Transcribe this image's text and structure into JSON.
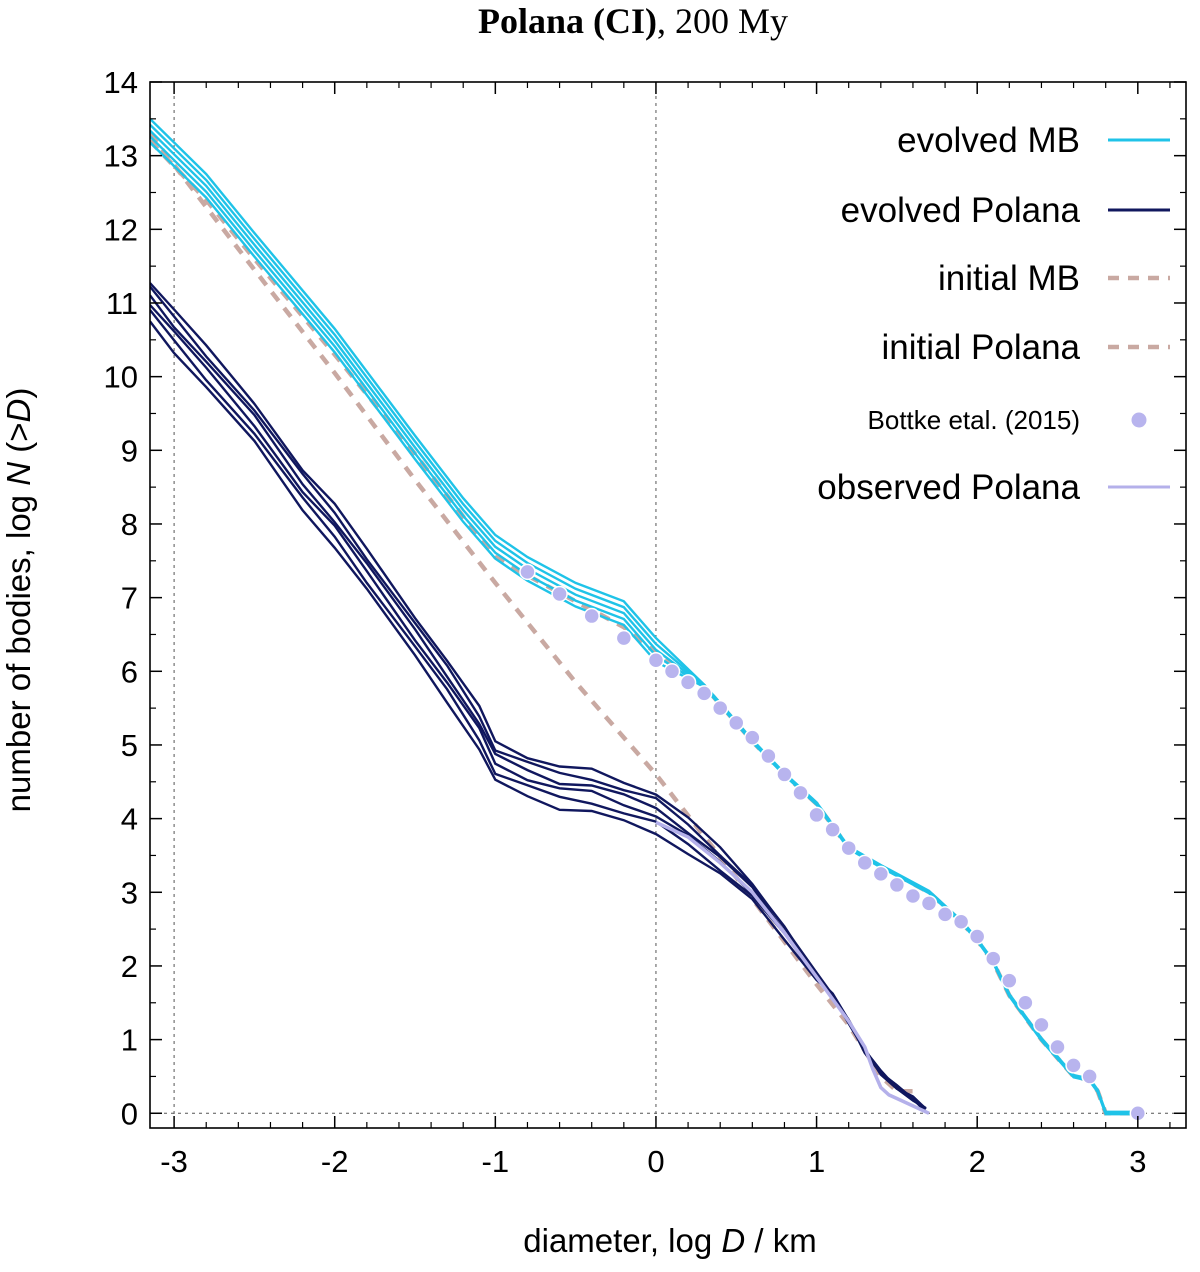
{
  "chart_data": {
    "type": "line",
    "title_bold": "Polana (CI)",
    "title_rest": ", 200 My",
    "xlabel_prefix": "diameter, log ",
    "xlabel_var": "D",
    "xlabel_suffix": " / km",
    "ylabel_prefix": "number of bodies, log ",
    "ylabel_var": "N",
    "ylabel_mid": " (>",
    "ylabel_var2": "D",
    "ylabel_suffix": ")",
    "xlim": [
      -3.15,
      3.3
    ],
    "ylim": [
      -0.2,
      14
    ],
    "xticks": [
      -3,
      -2,
      -1,
      0,
      1,
      2,
      3
    ],
    "xtick_labels": [
      "-3",
      "-2",
      "-1",
      "0",
      "1",
      "2",
      "3"
    ],
    "yticks": [
      0,
      1,
      2,
      3,
      4,
      5,
      6,
      7,
      8,
      9,
      10,
      11,
      12,
      13,
      14
    ],
    "ytick_labels": [
      "0",
      "1",
      "2",
      "3",
      "4",
      "5",
      "6",
      "7",
      "8",
      "9",
      "10",
      "11",
      "12",
      "13",
      "14"
    ],
    "reference_lines": {
      "vertical": [
        -3,
        0
      ],
      "horizontal": [
        0
      ]
    },
    "colors": {
      "evolved_mb": "#1fc3e8",
      "evolved_polana": "#10175e",
      "initial": "#c9a9a2",
      "bottke": "#b8b4ee",
      "observed": "#b4b0ea"
    },
    "legend": [
      {
        "label": "evolved MB",
        "style": "solid",
        "color": "#1fc3e8"
      },
      {
        "label": "evolved Polana",
        "style": "solid",
        "color": "#10175e"
      },
      {
        "label": "initial MB",
        "style": "dashed",
        "color": "#c9a9a2"
      },
      {
        "label": "initial Polana",
        "style": "dashed",
        "color": "#c9a9a2"
      },
      {
        "label": "Bottke etal. (2015)",
        "style": "point",
        "color": "#b8b4ee"
      },
      {
        "label": "observed Polana",
        "style": "solid",
        "color": "#b4b0ea"
      }
    ],
    "series": [
      {
        "name": "initial MB",
        "x": [
          -3.15,
          -2.8,
          -2.5,
          -2.0,
          -1.5,
          -1.2,
          -1.0,
          -0.8,
          -0.5,
          -0.2,
          0.0,
          0.3,
          0.6,
          0.8,
          1.0,
          1.2,
          1.4,
          1.7,
          1.9,
          2.0,
          2.1,
          2.2,
          2.4,
          2.6,
          2.7,
          2.75,
          2.8,
          2.9,
          3.0
        ],
        "values": [
          13.2,
          12.4,
          11.6,
          10.3,
          8.95,
          8.1,
          7.55,
          7.3,
          6.95,
          6.6,
          6.25,
          5.8,
          5.05,
          4.6,
          4.2,
          3.6,
          3.35,
          3.0,
          2.6,
          2.35,
          2.05,
          1.6,
          1.0,
          0.5,
          0.45,
          0.3,
          0.0,
          0.0,
          0.0
        ]
      },
      {
        "name": "initial Polana",
        "x": [
          -3.15,
          -2.5,
          -2.0,
          -1.5,
          -1.0,
          -0.5,
          0.0,
          0.5,
          1.0,
          1.2,
          1.4,
          1.5,
          1.6
        ],
        "values": [
          13.3,
          11.45,
          10.05,
          8.6,
          7.2,
          5.85,
          4.6,
          3.2,
          1.75,
          1.2,
          0.5,
          0.3,
          0.3
        ]
      },
      {
        "name": "evolved MB",
        "x": [
          -3.15,
          -2.8,
          -2.5,
          -2.0,
          -1.5,
          -1.2,
          -1.0,
          -0.8,
          -0.5,
          -0.2,
          0.0,
          0.3,
          0.6,
          0.8,
          1.0,
          1.2,
          1.4,
          1.7,
          1.9,
          2.0,
          2.1,
          2.2,
          2.4,
          2.6,
          2.7,
          2.75,
          2.8,
          2.9,
          3.0
        ],
        "values": [
          13.3,
          12.55,
          11.75,
          10.45,
          9.0,
          8.15,
          7.65,
          7.35,
          7.0,
          6.75,
          6.25,
          5.8,
          5.05,
          4.6,
          4.2,
          3.6,
          3.35,
          3.0,
          2.6,
          2.35,
          2.05,
          1.6,
          1.0,
          0.5,
          0.45,
          0.3,
          0.0,
          0.0,
          0.0
        ]
      },
      {
        "name": "evolved Polana",
        "x": [
          -3.15,
          -3.0,
          -2.8,
          -2.5,
          -2.2,
          -2.0,
          -1.8,
          -1.5,
          -1.3,
          -1.1,
          -1.0,
          -0.8,
          -0.6,
          -0.4,
          -0.2,
          0.0,
          0.2,
          0.4,
          0.6,
          0.8,
          1.0,
          1.1,
          1.2,
          1.3,
          1.4,
          1.5,
          1.6,
          1.68
        ],
        "values": [
          11.0,
          10.6,
          10.1,
          9.35,
          8.45,
          7.95,
          7.35,
          6.45,
          5.85,
          5.2,
          4.75,
          4.55,
          4.4,
          4.35,
          4.2,
          4.05,
          3.75,
          3.4,
          3.0,
          2.45,
          1.85,
          1.6,
          1.25,
          0.85,
          0.55,
          0.35,
          0.2,
          0.05
        ]
      },
      {
        "name": "observed Polana",
        "x": [
          0.0,
          0.2,
          0.4,
          0.6,
          0.8,
          1.0,
          1.2,
          1.3,
          1.35,
          1.4,
          1.45,
          1.5,
          1.6,
          1.7
        ],
        "values": [
          3.95,
          3.75,
          3.4,
          3.0,
          2.45,
          1.85,
          1.25,
          0.9,
          0.6,
          0.35,
          0.25,
          0.2,
          0.1,
          0.0
        ]
      },
      {
        "name": "Bottke etal. (2015)",
        "x": [
          -0.8,
          -0.6,
          -0.4,
          -0.2,
          0.0,
          0.1,
          0.2,
          0.3,
          0.4,
          0.5,
          0.6,
          0.7,
          0.8,
          0.9,
          1.0,
          1.1,
          1.2,
          1.3,
          1.4,
          1.5,
          1.6,
          1.7,
          1.8,
          1.9,
          2.0,
          2.1,
          2.2,
          2.3,
          2.4,
          2.5,
          2.6,
          2.7,
          3.0
        ],
        "values": [
          7.35,
          7.05,
          6.75,
          6.45,
          6.15,
          6.0,
          5.85,
          5.7,
          5.5,
          5.3,
          5.1,
          4.85,
          4.6,
          4.35,
          4.05,
          3.85,
          3.6,
          3.4,
          3.25,
          3.1,
          2.95,
          2.85,
          2.7,
          2.6,
          2.4,
          2.1,
          1.8,
          1.5,
          1.2,
          0.9,
          0.65,
          0.5,
          0.0
        ]
      }
    ]
  }
}
